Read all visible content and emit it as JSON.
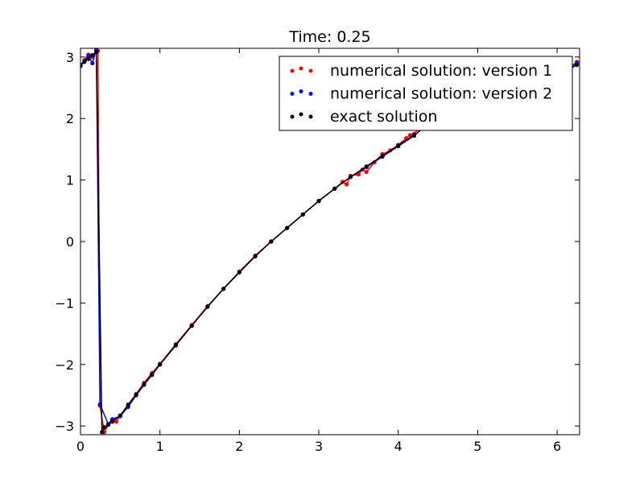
{
  "chart_data": {
    "type": "line",
    "title": "Time:  0.25",
    "xlim": [
      0,
      6.283
    ],
    "ylim": [
      -3.1416,
      3.1416
    ],
    "x_ticks": [
      0,
      1,
      2,
      3,
      4,
      5,
      6
    ],
    "x_tick_labels": [
      "0",
      "1",
      "2",
      "3",
      "4",
      "5",
      "6"
    ],
    "y_ticks": [
      -3,
      -2,
      -1,
      0,
      1,
      2,
      3
    ],
    "y_tick_labels": [
      "−3",
      "−2",
      "−1",
      "0",
      "1",
      "2",
      "3"
    ],
    "legend_position": "top-right",
    "grid": false,
    "series": [
      {
        "name": "numerical solution: version 1",
        "color": "#ff0000",
        "marker": "dots",
        "x": [
          0.0,
          0.05,
          0.1,
          0.15,
          0.2,
          0.22,
          0.245,
          0.3,
          0.35,
          0.4,
          0.45,
          0.5,
          0.6,
          0.7,
          0.8,
          0.9,
          1.0,
          1.2,
          1.4,
          1.6,
          1.8,
          2.0,
          2.2,
          2.4,
          2.6,
          2.8,
          3.0,
          3.2,
          3.3,
          3.35,
          3.4,
          3.5,
          3.55,
          3.6,
          3.7,
          3.8,
          3.9,
          4.0,
          4.1,
          4.15,
          4.2,
          4.3,
          4.4,
          4.5,
          4.55,
          4.6,
          4.7,
          4.8,
          4.9,
          5.0,
          5.05,
          6.15,
          6.25
        ],
        "y": [
          2.85,
          2.95,
          3.04,
          3.0,
          3.1,
          3.1,
          -2.67,
          -3.1,
          -2.98,
          -2.9,
          -2.93,
          -2.83,
          -2.65,
          -2.48,
          -2.3,
          -2.14,
          -1.99,
          -1.67,
          -1.36,
          -1.05,
          -0.77,
          -0.49,
          -0.23,
          0.0,
          0.22,
          0.44,
          0.66,
          0.86,
          0.97,
          0.93,
          1.07,
          1.09,
          1.17,
          1.13,
          1.29,
          1.42,
          1.48,
          1.57,
          1.68,
          1.73,
          1.75,
          1.91,
          2.02,
          2.11,
          2.22,
          2.28,
          2.33,
          2.45,
          2.52,
          2.62,
          2.62,
          2.82,
          2.92
        ]
      },
      {
        "name": "numerical solution: version 2",
        "color": "#0000ff",
        "marker": "dots",
        "x": [
          0.0,
          0.1,
          0.15,
          0.2,
          0.245,
          0.35,
          0.4,
          0.5,
          0.6,
          0.7,
          0.8,
          0.9,
          1.0,
          1.2,
          1.4,
          1.6,
          1.8,
          2.0,
          2.2,
          2.4,
          2.6,
          2.8,
          3.0,
          3.2,
          3.4,
          3.6,
          3.8,
          4.0,
          4.2,
          4.4,
          4.6,
          4.8,
          5.0,
          6.15,
          6.25
        ],
        "y": [
          2.87,
          3.02,
          2.9,
          3.12,
          -2.65,
          -2.97,
          -2.89,
          -2.84,
          -2.69,
          -2.5,
          -2.33,
          -2.17,
          -2.0,
          -1.69,
          -1.37,
          -1.06,
          -0.77,
          -0.5,
          -0.24,
          0.0,
          0.22,
          0.44,
          0.66,
          0.86,
          1.05,
          1.21,
          1.38,
          1.55,
          1.72,
          1.95,
          2.1,
          2.28,
          2.48,
          2.82,
          2.9
        ]
      },
      {
        "name": "exact solution",
        "color": "#000000",
        "marker": "dots",
        "x": [
          0.0,
          0.05,
          0.1,
          0.15,
          0.2,
          0.27,
          0.3,
          0.35,
          0.4,
          0.5,
          0.6,
          0.7,
          0.8,
          0.9,
          1.0,
          1.2,
          1.4,
          1.6,
          1.8,
          2.0,
          2.2,
          2.4,
          2.6,
          2.8,
          3.0,
          3.2,
          3.4,
          3.6,
          3.8,
          4.0,
          4.2,
          4.4,
          4.6,
          4.8,
          5.0,
          6.15,
          6.25
        ],
        "y": [
          2.86,
          2.92,
          2.97,
          3.03,
          3.08,
          -3.1,
          -3.02,
          -2.98,
          -2.93,
          -2.83,
          -2.66,
          -2.49,
          -2.32,
          -2.16,
          -2.0,
          -1.68,
          -1.37,
          -1.06,
          -0.77,
          -0.5,
          -0.24,
          0.0,
          0.22,
          0.44,
          0.66,
          0.86,
          1.05,
          1.22,
          1.39,
          1.56,
          1.73,
          1.92,
          2.1,
          2.28,
          2.46,
          2.8,
          2.87
        ]
      }
    ]
  }
}
